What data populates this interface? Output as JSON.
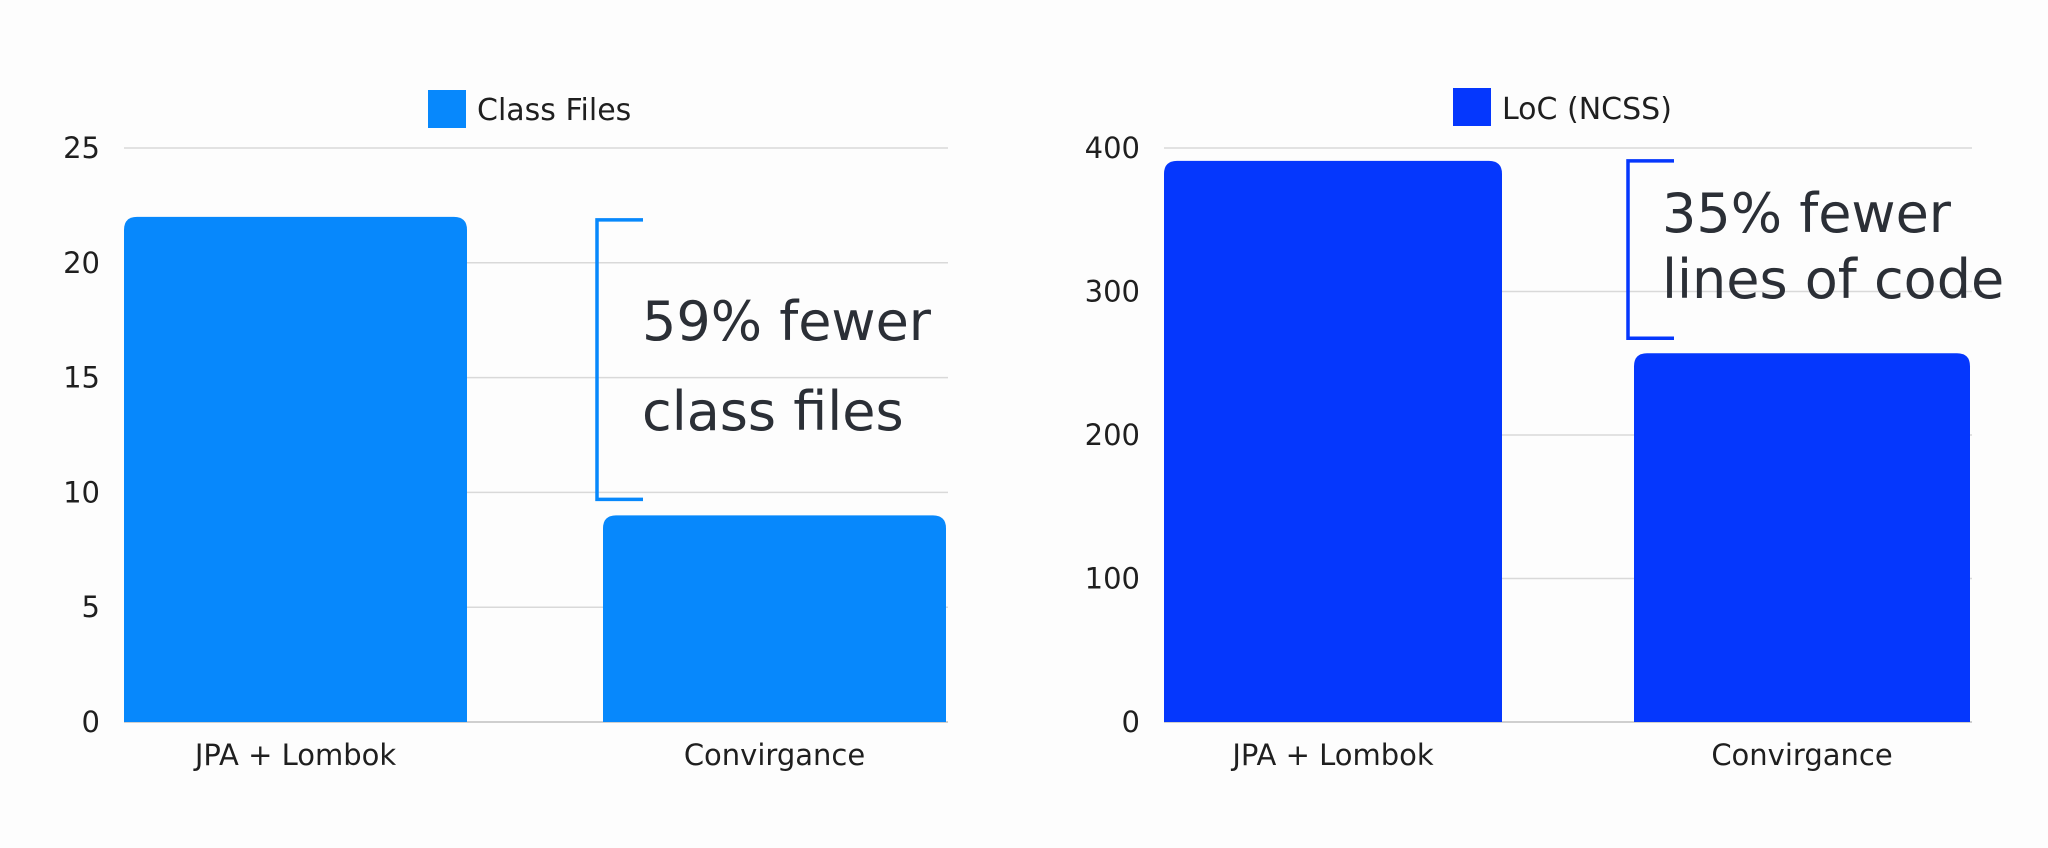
{
  "chart_data": [
    {
      "type": "bar",
      "categories": [
        "JPA + Lombok",
        "Convirgance"
      ],
      "series": [
        {
          "name": "Class Files",
          "values": [
            22,
            9
          ]
        }
      ],
      "ylim": [
        0,
        25
      ],
      "yticks": [
        0,
        5,
        10,
        15,
        20,
        25
      ],
      "grid": true,
      "legend": "top-center",
      "color": "#0788fc",
      "annotation": {
        "lines": [
          "59% fewer",
          "class files"
        ],
        "bracket_from": 22,
        "bracket_to": 9,
        "color": "#0788fc"
      }
    },
    {
      "type": "bar",
      "categories": [
        "JPA + Lombok",
        "Convirgance"
      ],
      "series": [
        {
          "name": "LoC (NCSS)",
          "values": [
            391,
            257
          ]
        }
      ],
      "ylim": [
        0,
        400
      ],
      "yticks": [
        0,
        100,
        200,
        300,
        400
      ],
      "grid": true,
      "legend": "top-center",
      "color": "#0537fd",
      "annotation": {
        "lines": [
          "35% fewer",
          "lines of code"
        ],
        "bracket_from": 391,
        "bracket_to": 257,
        "color": "#0537fd"
      }
    }
  ]
}
